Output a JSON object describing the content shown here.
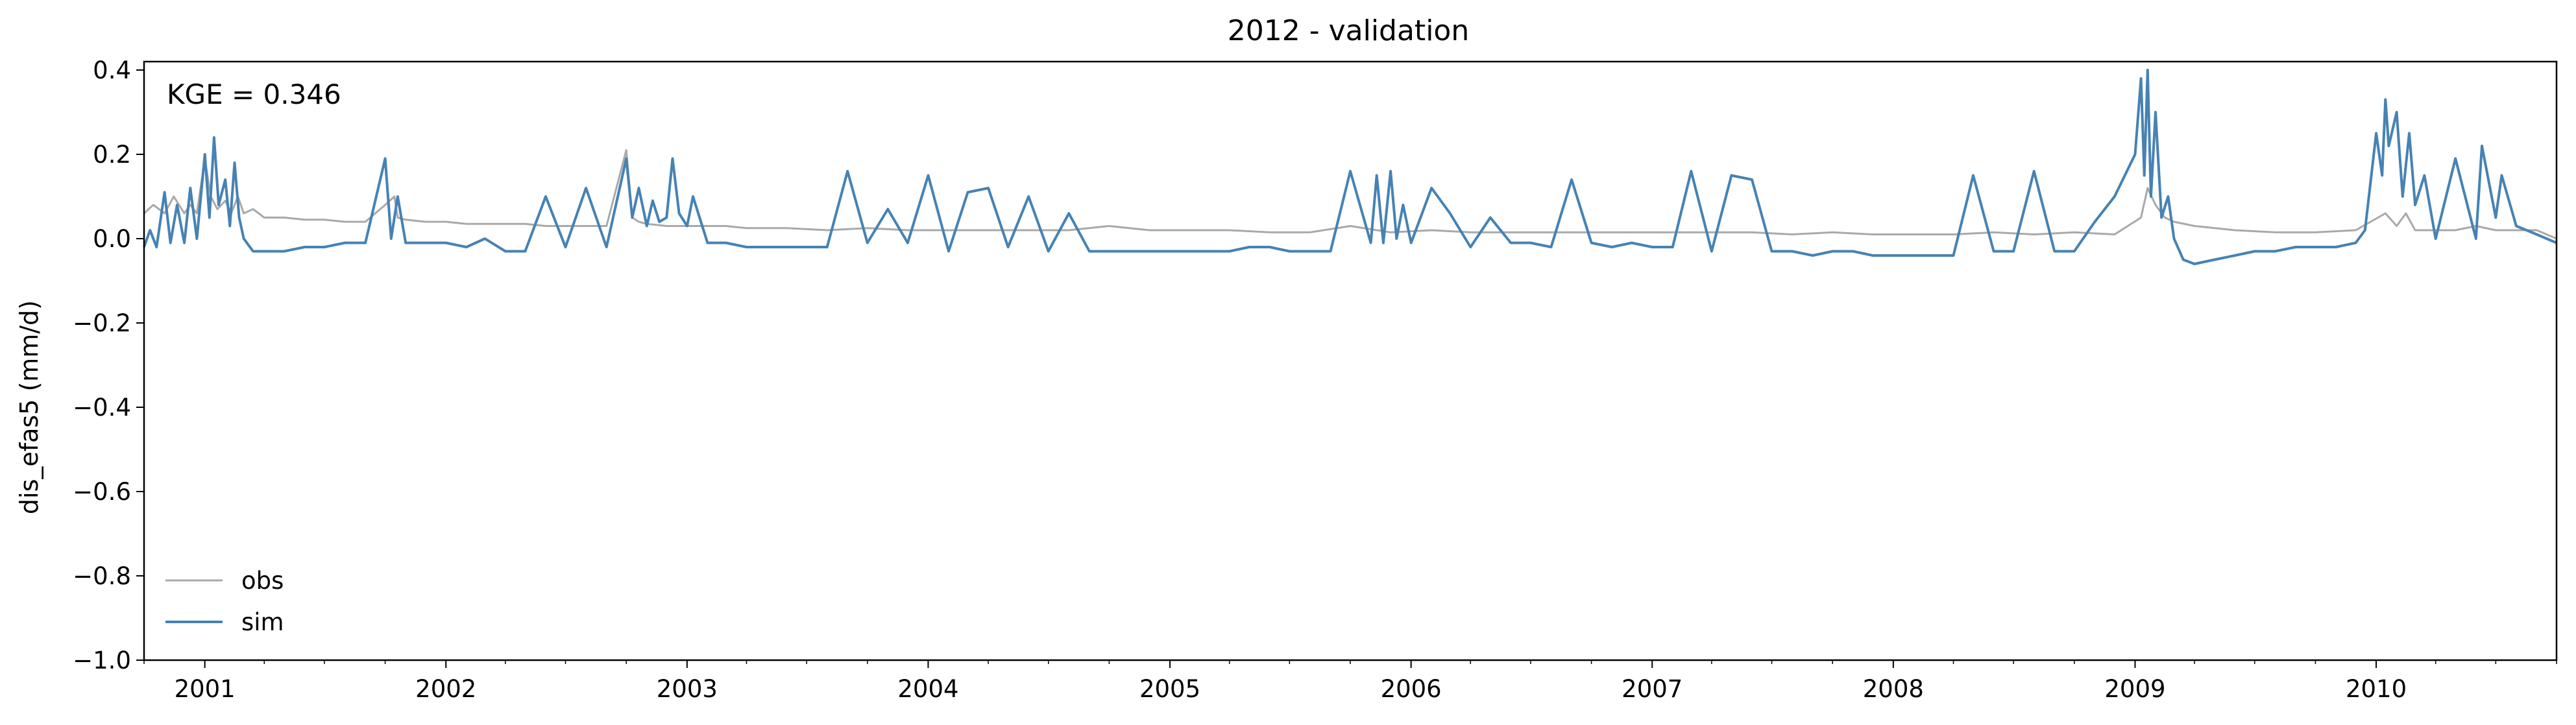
{
  "chart_data": {
    "type": "line",
    "title": "2012 - validation",
    "xlabel": "",
    "ylabel": "dis_efas5 (mm/d)",
    "annotation": "KGE = 0.346",
    "xlim": [
      "2000-10-01",
      "2010-10-01"
    ],
    "ylim": [
      -1.0,
      0.42
    ],
    "x_ticks": [
      "2001",
      "2002",
      "2003",
      "2004",
      "2005",
      "2006",
      "2007",
      "2008",
      "2009",
      "2010"
    ],
    "y_ticks": [
      "0.4",
      "0.2",
      "0.0",
      "−0.2",
      "−0.4",
      "−0.6",
      "−0.8",
      "−1.0"
    ],
    "y_tick_values": [
      0.4,
      0.2,
      0.0,
      -0.2,
      -0.4,
      -0.6,
      -0.8,
      -1.0
    ],
    "grid": false,
    "legend_position": "lower-left",
    "series": [
      {
        "name": "obs",
        "color": "#a9a9a9",
        "x": [
          "2000-10-01",
          "2000-10-15",
          "2000-11-01",
          "2000-11-15",
          "2000-12-01",
          "2000-12-10",
          "2000-12-20",
          "2001-01-01",
          "2001-01-10",
          "2001-01-20",
          "2001-02-01",
          "2001-02-10",
          "2001-02-20",
          "2001-03-01",
          "2001-03-15",
          "2001-04-01",
          "2001-05-01",
          "2001-06-01",
          "2001-07-01",
          "2001-08-01",
          "2001-09-01",
          "2001-10-01",
          "2001-10-15",
          "2001-10-20",
          "2001-11-01",
          "2001-12-01",
          "2002-01-01",
          "2002-02-01",
          "2002-03-01",
          "2002-04-01",
          "2002-05-01",
          "2002-06-01",
          "2002-07-01",
          "2002-08-01",
          "2002-09-01",
          "2002-10-01",
          "2002-10-10",
          "2002-10-20",
          "2002-11-01",
          "2002-12-01",
          "2003-01-01",
          "2003-02-01",
          "2003-03-01",
          "2003-04-01",
          "2003-06-01",
          "2003-08-01",
          "2003-10-01",
          "2003-12-01",
          "2004-02-01",
          "2004-04-01",
          "2004-06-01",
          "2004-08-01",
          "2004-10-01",
          "2004-12-01",
          "2005-02-01",
          "2005-04-01",
          "2005-06-01",
          "2005-08-01",
          "2005-10-01",
          "2005-12-01",
          "2006-02-01",
          "2006-04-01",
          "2006-06-01",
          "2006-08-01",
          "2006-10-01",
          "2006-12-01",
          "2007-02-01",
          "2007-04-01",
          "2007-06-01",
          "2007-08-01",
          "2007-10-01",
          "2007-12-01",
          "2008-02-01",
          "2008-04-01",
          "2008-06-01",
          "2008-08-01",
          "2008-10-01",
          "2008-12-01",
          "2009-01-10",
          "2009-01-20",
          "2009-02-01",
          "2009-02-15",
          "2009-03-01",
          "2009-04-01",
          "2009-06-01",
          "2009-08-01",
          "2009-10-01",
          "2009-12-01",
          "2010-01-15",
          "2010-02-01",
          "2010-02-15",
          "2010-03-01",
          "2010-04-01",
          "2010-05-01",
          "2010-06-01",
          "2010-07-01",
          "2010-08-01",
          "2010-09-01",
          "2010-10-01"
        ],
        "values": [
          0.06,
          0.08,
          0.06,
          0.1,
          0.06,
          0.08,
          0.06,
          0.19,
          0.1,
          0.07,
          0.09,
          0.06,
          0.1,
          0.06,
          0.07,
          0.05,
          0.05,
          0.045,
          0.045,
          0.04,
          0.04,
          0.08,
          0.1,
          0.05,
          0.045,
          0.04,
          0.04,
          0.035,
          0.035,
          0.035,
          0.035,
          0.03,
          0.03,
          0.03,
          0.03,
          0.21,
          0.05,
          0.04,
          0.035,
          0.03,
          0.03,
          0.03,
          0.03,
          0.025,
          0.025,
          0.02,
          0.025,
          0.02,
          0.02,
          0.02,
          0.02,
          0.02,
          0.03,
          0.02,
          0.02,
          0.02,
          0.015,
          0.015,
          0.03,
          0.015,
          0.02,
          0.015,
          0.015,
          0.015,
          0.015,
          0.015,
          0.015,
          0.015,
          0.015,
          0.01,
          0.015,
          0.01,
          0.01,
          0.01,
          0.015,
          0.01,
          0.015,
          0.01,
          0.05,
          0.12,
          0.08,
          0.05,
          0.04,
          0.03,
          0.02,
          0.015,
          0.015,
          0.02,
          0.06,
          0.03,
          0.06,
          0.02,
          0.02,
          0.02,
          0.03,
          0.02,
          0.02,
          0.02,
          0.0
        ]
      },
      {
        "name": "sim",
        "color": "#4682b4",
        "x": [
          "2000-10-01",
          "2000-10-10",
          "2000-10-20",
          "2000-11-01",
          "2000-11-10",
          "2000-11-20",
          "2000-12-01",
          "2000-12-10",
          "2000-12-20",
          "2001-01-01",
          "2001-01-08",
          "2001-01-15",
          "2001-01-22",
          "2001-02-01",
          "2001-02-08",
          "2001-02-15",
          "2001-02-22",
          "2001-03-01",
          "2001-03-15",
          "2001-04-01",
          "2001-05-01",
          "2001-06-01",
          "2001-07-01",
          "2001-08-01",
          "2001-09-01",
          "2001-10-01",
          "2001-10-10",
          "2001-10-20",
          "2001-11-01",
          "2001-12-01",
          "2002-01-01",
          "2002-02-01",
          "2002-03-01",
          "2002-04-01",
          "2002-05-01",
          "2002-06-01",
          "2002-07-01",
          "2002-08-01",
          "2002-09-01",
          "2002-10-01",
          "2002-10-10",
          "2002-10-20",
          "2002-11-01",
          "2002-11-10",
          "2002-11-20",
          "2002-12-01",
          "2002-12-10",
          "2002-12-20",
          "2003-01-01",
          "2003-01-10",
          "2003-02-01",
          "2003-03-01",
          "2003-04-01",
          "2003-05-01",
          "2003-06-01",
          "2003-07-01",
          "2003-08-01",
          "2003-09-01",
          "2003-10-01",
          "2003-11-01",
          "2003-12-01",
          "2004-01-01",
          "2004-02-01",
          "2004-03-01",
          "2004-04-01",
          "2004-05-01",
          "2004-06-01",
          "2004-07-01",
          "2004-08-01",
          "2004-09-01",
          "2004-10-01",
          "2004-11-01",
          "2004-12-01",
          "2005-01-01",
          "2005-02-01",
          "2005-03-01",
          "2005-04-01",
          "2005-05-01",
          "2005-06-01",
          "2005-07-01",
          "2005-08-01",
          "2005-09-01",
          "2005-10-01",
          "2005-11-01",
          "2005-11-10",
          "2005-11-20",
          "2005-12-01",
          "2005-12-10",
          "2005-12-20",
          "2006-01-01",
          "2006-02-01",
          "2006-03-01",
          "2006-04-01",
          "2006-05-01",
          "2006-06-01",
          "2006-07-01",
          "2006-08-01",
          "2006-09-01",
          "2006-10-01",
          "2006-11-01",
          "2006-12-01",
          "2007-01-01",
          "2007-02-01",
          "2007-03-01",
          "2007-04-01",
          "2007-05-01",
          "2007-06-01",
          "2007-07-01",
          "2007-08-01",
          "2007-09-01",
          "2007-10-01",
          "2007-11-01",
          "2007-12-01",
          "2008-01-01",
          "2008-02-01",
          "2008-03-01",
          "2008-04-01",
          "2008-05-01",
          "2008-06-01",
          "2008-07-01",
          "2008-08-01",
          "2008-09-01",
          "2008-10-01",
          "2008-11-01",
          "2008-12-01",
          "2009-01-01",
          "2009-01-10",
          "2009-01-15",
          "2009-01-20",
          "2009-01-25",
          "2009-02-01",
          "2009-02-10",
          "2009-02-20",
          "2009-03-01",
          "2009-03-15",
          "2009-04-01",
          "2009-05-01",
          "2009-06-01",
          "2009-07-01",
          "2009-08-01",
          "2009-09-01",
          "2009-10-01",
          "2009-11-01",
          "2009-12-01",
          "2009-12-15",
          "2010-01-01",
          "2010-01-10",
          "2010-01-15",
          "2010-01-20",
          "2010-02-01",
          "2010-02-10",
          "2010-02-20",
          "2010-03-01",
          "2010-03-15",
          "2010-04-01",
          "2010-05-01",
          "2010-06-01",
          "2010-06-10",
          "2010-07-01",
          "2010-07-10",
          "2010-08-01",
          "2010-09-01",
          "2010-10-01"
        ],
        "values": [
          -0.02,
          0.02,
          -0.02,
          0.11,
          -0.01,
          0.08,
          -0.01,
          0.12,
          0.0,
          0.2,
          0.05,
          0.24,
          0.08,
          0.14,
          0.03,
          0.18,
          0.05,
          0.0,
          -0.03,
          -0.03,
          -0.03,
          -0.02,
          -0.02,
          -0.01,
          -0.01,
          0.19,
          0.0,
          0.1,
          -0.01,
          -0.01,
          -0.01,
          -0.02,
          0.0,
          -0.03,
          -0.03,
          0.1,
          -0.02,
          0.12,
          -0.02,
          0.19,
          0.05,
          0.12,
          0.03,
          0.09,
          0.04,
          0.05,
          0.19,
          0.06,
          0.03,
          0.1,
          -0.01,
          -0.01,
          -0.02,
          -0.02,
          -0.02,
          -0.02,
          -0.02,
          0.16,
          -0.01,
          0.07,
          -0.01,
          0.15,
          -0.03,
          0.11,
          0.12,
          -0.02,
          0.1,
          -0.03,
          0.06,
          -0.03,
          -0.03,
          -0.03,
          -0.03,
          -0.03,
          -0.03,
          -0.03,
          -0.03,
          -0.02,
          -0.02,
          -0.03,
          -0.03,
          -0.03,
          0.16,
          -0.01,
          0.15,
          -0.01,
          0.16,
          0.0,
          0.08,
          -0.01,
          0.12,
          0.06,
          -0.02,
          0.05,
          -0.01,
          -0.01,
          -0.02,
          0.14,
          -0.01,
          -0.02,
          -0.01,
          -0.02,
          -0.02,
          0.16,
          -0.03,
          0.15,
          0.14,
          -0.03,
          -0.03,
          -0.04,
          -0.03,
          -0.03,
          -0.04,
          -0.04,
          -0.04,
          -0.04,
          -0.04,
          0.15,
          -0.03,
          -0.03,
          0.16,
          -0.03,
          -0.03,
          0.04,
          0.1,
          0.2,
          0.38,
          0.15,
          0.4,
          0.1,
          0.3,
          0.05,
          0.1,
          0.0,
          -0.05,
          -0.06,
          -0.05,
          -0.04,
          -0.03,
          -0.03,
          -0.02,
          -0.02,
          -0.02,
          -0.01,
          0.02,
          0.25,
          0.15,
          0.33,
          0.22,
          0.3,
          0.1,
          0.25,
          0.08,
          0.15,
          0.0,
          0.19,
          0.0,
          0.22,
          0.05,
          0.15,
          0.03,
          0.01,
          -0.01
        ]
      }
    ]
  }
}
